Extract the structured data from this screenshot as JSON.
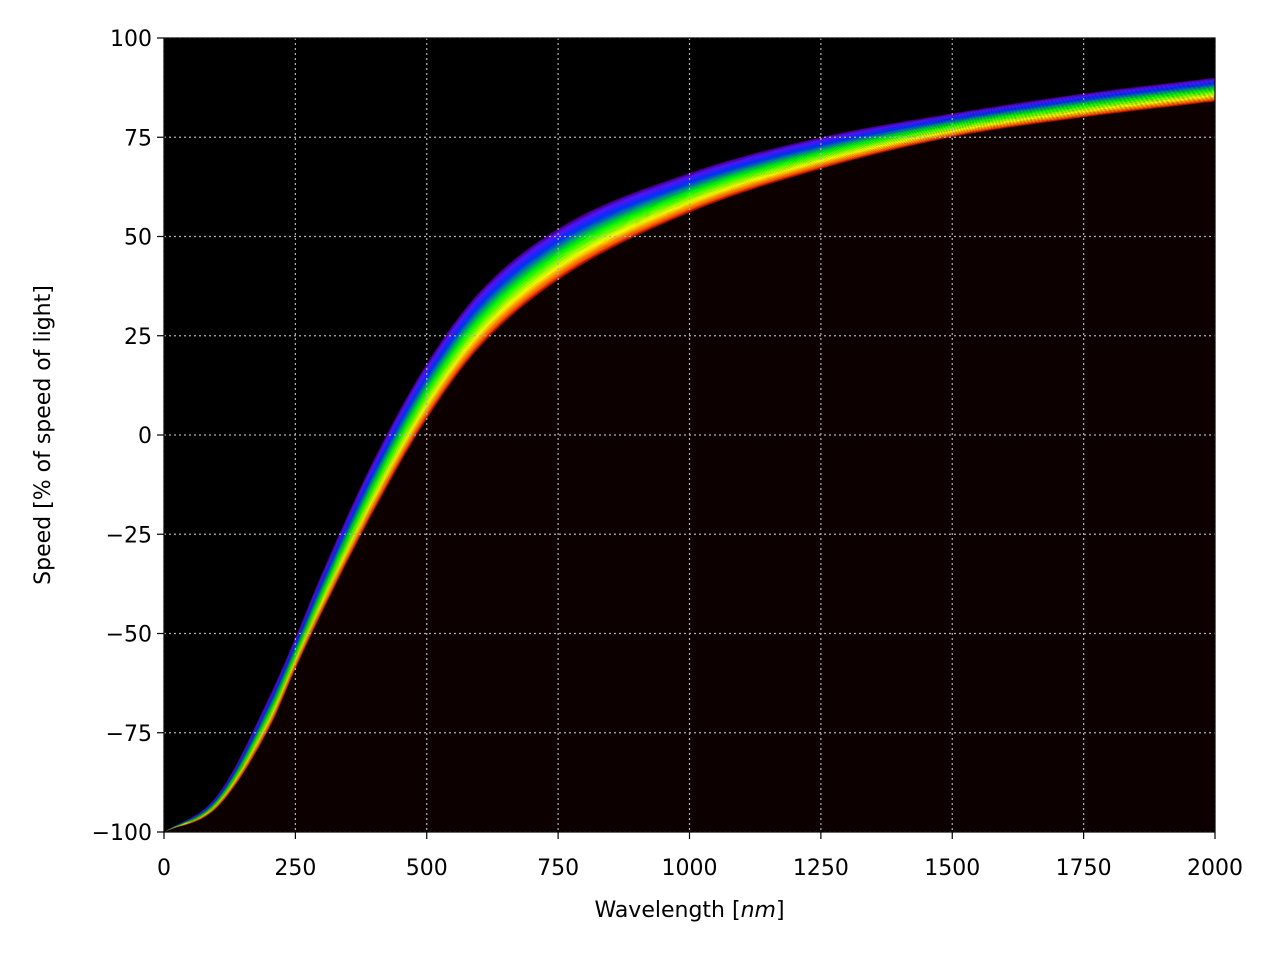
{
  "chart_data": {
    "type": "area",
    "title": "",
    "xlabel": "Wavelength [nm]",
    "xlabel_parts": {
      "prefix": "Wavelength [",
      "italic": "nm",
      "suffix": "]"
    },
    "ylabel": "Speed [% of speed of light]",
    "xlim": [
      0,
      2000
    ],
    "ylim": [
      -100,
      100
    ],
    "xticks": [
      0,
      250,
      500,
      750,
      1000,
      1250,
      1500,
      1750,
      2000
    ],
    "xtick_labels": [
      "0",
      "250",
      "500",
      "750",
      "1000",
      "1250",
      "1500",
      "1750",
      "2000"
    ],
    "yticks": [
      -100,
      -75,
      -50,
      -25,
      0,
      25,
      50,
      75,
      100
    ],
    "ytick_labels": [
      "−100",
      "−75",
      "−50",
      "−25",
      "0",
      "25",
      "50",
      "75",
      "100"
    ],
    "grid": true,
    "grid_style": "dotted",
    "background_upper_color": "#000000",
    "background_lower_color": "#0d0000",
    "band_colors": [
      "#8b00ff",
      "#0033ff",
      "#00ff00",
      "#ffff00",
      "#ff0000"
    ],
    "x": [
      0,
      100,
      200,
      250,
      300,
      400,
      500,
      600,
      750,
      1000,
      1250,
      1500,
      1750,
      2000
    ],
    "series": [
      {
        "values": [
          -100,
          -91,
          -66,
          -51,
          -35,
          -6,
          18,
          36,
          52,
          66,
          75,
          81,
          86,
          90
        ]
      },
      {
        "values": [
          -100,
          -94,
          -74,
          -59,
          -45,
          -19,
          4,
          22,
          39,
          56,
          67,
          75,
          80,
          84
        ]
      }
    ]
  }
}
